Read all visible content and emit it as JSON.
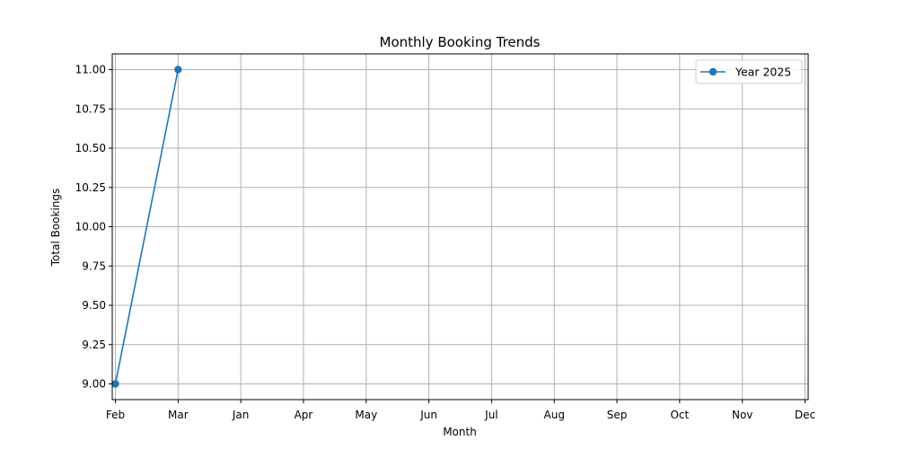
{
  "chart_data": {
    "type": "line",
    "title": "Monthly Booking Trends",
    "xlabel": "Month",
    "ylabel": "Total Bookings",
    "categories": [
      "Feb",
      "Mar",
      "Jan",
      "Apr",
      "May",
      "Jun",
      "Jul",
      "Aug",
      "Sep",
      "Oct",
      "Nov",
      "Dec"
    ],
    "series": [
      {
        "name": "Year 2025",
        "x": [
          "Feb",
          "Mar"
        ],
        "values": [
          9,
          11
        ]
      }
    ],
    "ylim": [
      8.9,
      11.1
    ],
    "yticks": [
      9.0,
      9.25,
      9.5,
      9.75,
      10.0,
      10.25,
      10.5,
      10.75,
      11.0
    ],
    "ytick_labels": [
      "9.00",
      "9.25",
      "9.50",
      "9.75",
      "10.00",
      "10.25",
      "10.50",
      "10.75",
      "11.00"
    ],
    "grid": true,
    "legend_position": "top-right",
    "colors": {
      "series": "#1f77b4",
      "grid": "#b0b0b0",
      "axis": "#000000"
    }
  }
}
